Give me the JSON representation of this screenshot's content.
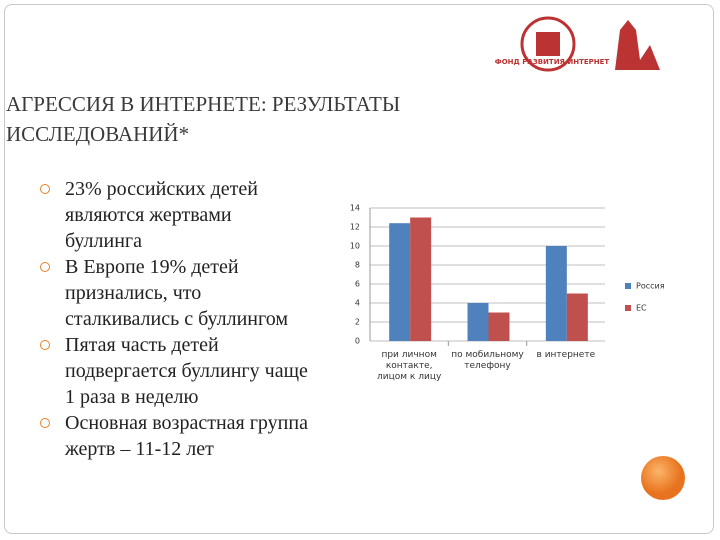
{
  "logo": "ФОНД РАЗВИТИЯ ИНТЕРНЕТ",
  "title": [
    "АГРЕССИЯ В ИНТЕРНЕТЕ: РЕЗУЛЬТАТЫ",
    "ИССЛЕДОВАНИЙ*"
  ],
  "bullets": [
    "23% российских детей являются жертвами буллинга",
    "В Европе 19% детей признались, что сталкивались с буллингом",
    "Пятая часть детей подвергается буллингу чаще 1 раза в неделю",
    "Основная возрастная группа жертв – 11-12 лет"
  ],
  "chart_data": {
    "type": "bar",
    "categories": [
      "при личном контакте, лицом к лицу",
      "по мобильному телефону",
      "в интернете"
    ],
    "series": [
      {
        "name": "Россия",
        "color": "#4f81bd",
        "values": [
          12.4,
          4,
          10
        ]
      },
      {
        "name": "ЕС",
        "color": "#c0504d",
        "values": [
          13,
          3,
          5
        ]
      }
    ],
    "ylim": [
      0,
      14
    ],
    "yticks": [
      0,
      2,
      4,
      6,
      8,
      10,
      12,
      14
    ],
    "grid": true,
    "legend": "right"
  }
}
